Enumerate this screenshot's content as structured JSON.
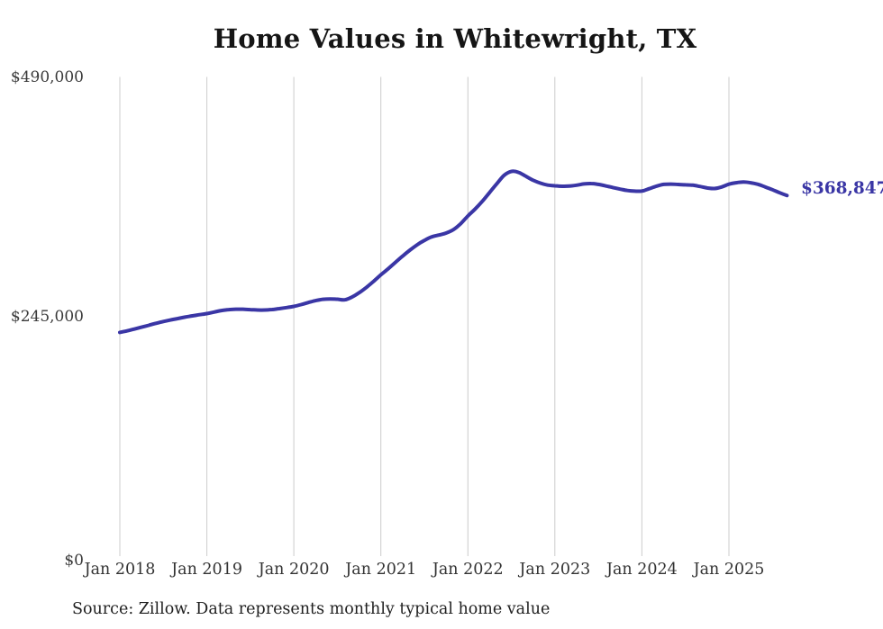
{
  "chart": {
    "title": "Home Values in Whitewright, TX",
    "end_label": "$368,847",
    "source": "Source: Zillow. Data represents monthly typical home value",
    "y_ticks": [
      "$490,000",
      "$245,000",
      "$0"
    ],
    "accent_color": "#3a36a5",
    "grid_color": "#cccccc"
  },
  "chart_data": {
    "type": "line",
    "title": "Home Values in Whitewright, TX",
    "series_name": "Typical home value (monthly, Zillow ZHVI)",
    "x_start": "2018-01",
    "x_end": "2025-09",
    "frequency": "monthly",
    "x_tick_labels": [
      "Jan 2018",
      "Jan 2019",
      "Jan 2020",
      "Jan 2021",
      "Jan 2022",
      "Jan 2023",
      "Jan 2024",
      "Jan 2025"
    ],
    "y_tick_labels": [
      "$0",
      "$245,000",
      "$490,000"
    ],
    "y_tick_values": [
      0,
      245000,
      490000
    ],
    "ylim": [
      0,
      490000
    ],
    "grid": "vertical-only",
    "legend": "none",
    "end_value": 368847,
    "values": [
      229000,
      230600,
      232400,
      234300,
      236300,
      238300,
      240100,
      241700,
      243200,
      244600,
      245900,
      247100,
      248200,
      249800,
      251300,
      252300,
      252700,
      252700,
      252300,
      251900,
      251900,
      252400,
      253300,
      254400,
      255600,
      257400,
      259500,
      261500,
      262800,
      263200,
      262900,
      262300,
      265000,
      269500,
      275000,
      281200,
      287800,
      294000,
      300500,
      307000,
      313000,
      318500,
      323000,
      326500,
      328500,
      330500,
      334000,
      340000,
      348000,
      355000,
      363000,
      372000,
      381000,
      389500,
      393500,
      392500,
      388500,
      384500,
      381500,
      379500,
      378800,
      378300,
      378500,
      379400,
      380700,
      381100,
      380200,
      378700,
      377000,
      375400,
      374000,
      373300,
      373400,
      375800,
      378400,
      380200,
      380500,
      380100,
      379800,
      379400,
      378100,
      376600,
      376000,
      377600,
      380400,
      381900,
      382600,
      381900,
      380300,
      377700,
      374800,
      371700,
      368847
    ]
  }
}
